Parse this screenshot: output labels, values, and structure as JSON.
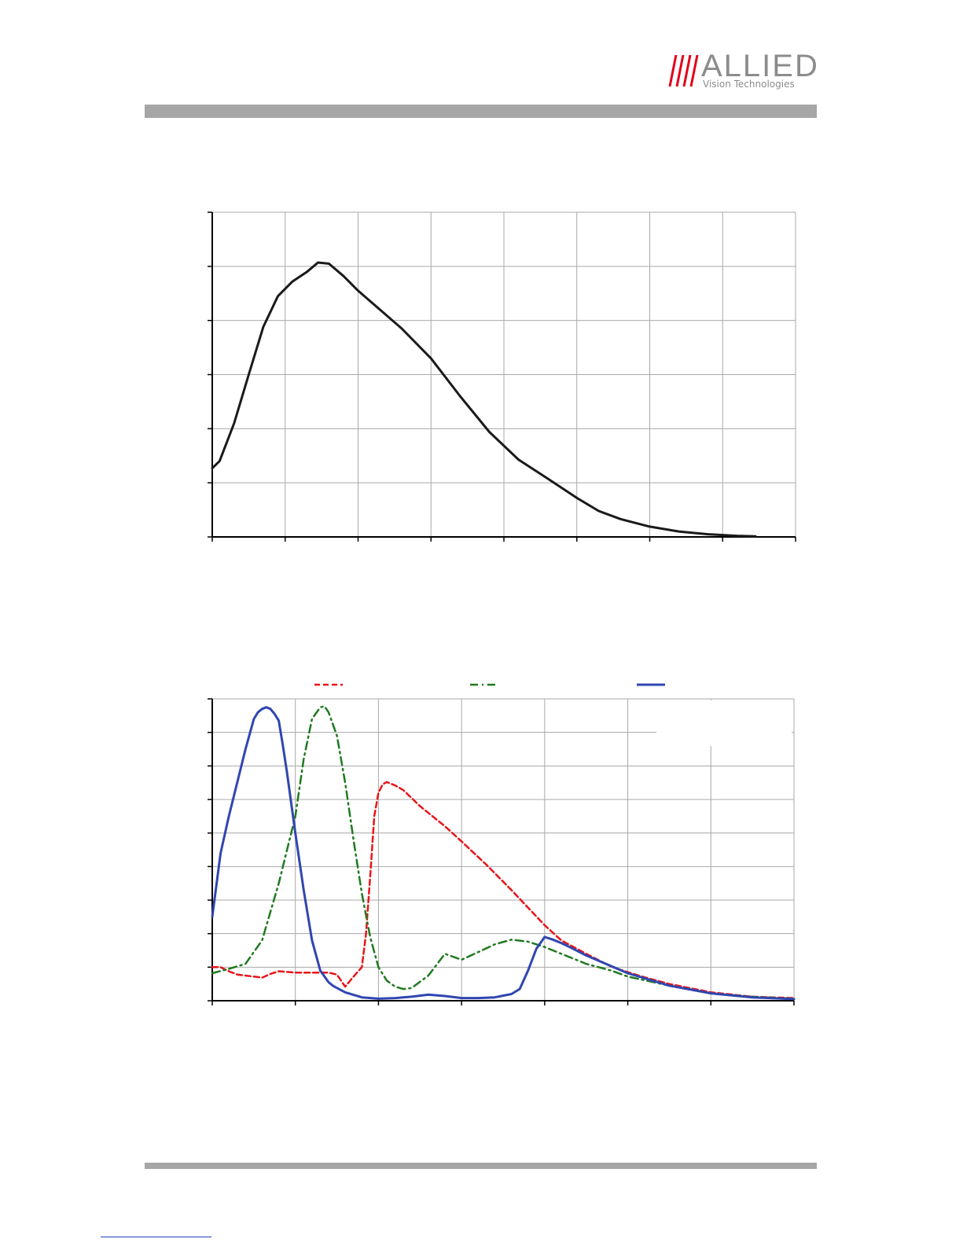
{
  "header": {
    "logo": {
      "word": "ALLIED",
      "sub": "Vision Technologies",
      "slash_color": "#e2001a",
      "word_color": "#8c8c8c"
    },
    "bar_color": "#a6a6a6"
  },
  "chart_data": [
    {
      "type": "line",
      "title": "",
      "xlabel": "",
      "ylabel": "",
      "xlim": [
        0,
        8
      ],
      "ylim": [
        0,
        6
      ],
      "grid": true,
      "series": [
        {
          "color": "#1a1a1a",
          "style": "solid",
          "x": [
            0,
            0.1,
            0.3,
            0.5,
            0.7,
            0.9,
            1.1,
            1.3,
            1.45,
            1.6,
            1.8,
            2.0,
            2.3,
            2.6,
            3.0,
            3.4,
            3.8,
            4.2,
            4.6,
            5.0,
            5.3,
            5.6,
            6.0,
            6.4,
            6.8,
            7.2,
            7.45
          ],
          "y": [
            1.27,
            1.4,
            2.1,
            3.0,
            3.88,
            4.45,
            4.72,
            4.9,
            5.07,
            5.05,
            4.82,
            4.55,
            4.2,
            3.85,
            3.3,
            2.6,
            1.94,
            1.43,
            1.08,
            0.72,
            0.48,
            0.33,
            0.19,
            0.1,
            0.05,
            0.02,
            0.01
          ]
        }
      ]
    },
    {
      "type": "line",
      "title": "",
      "xlabel": "",
      "ylabel": "",
      "xlim": [
        0,
        7
      ],
      "ylim": [
        0,
        9
      ],
      "grid": true,
      "legend": "top",
      "series": [
        {
          "color": "#e8141a",
          "style": "dashed",
          "x": [
            0,
            0.1,
            0.2,
            0.3,
            0.5,
            0.6,
            0.7,
            0.8,
            1.0,
            1.2,
            1.4,
            1.5,
            1.6,
            1.7,
            1.8,
            1.85,
            1.9,
            1.95,
            2.0,
            2.05,
            2.1,
            2.2,
            2.3,
            2.5,
            2.8,
            3.0,
            3.3,
            3.6,
            4.0,
            4.2,
            4.5,
            4.8,
            5.0,
            5.2,
            5.5,
            6.0,
            6.5,
            7.0
          ],
          "y": [
            1.0,
            1.0,
            0.88,
            0.78,
            0.72,
            0.69,
            0.8,
            0.88,
            0.84,
            0.84,
            0.84,
            0.78,
            0.42,
            0.72,
            1.0,
            2.0,
            3.7,
            5.5,
            6.2,
            6.45,
            6.52,
            6.42,
            6.28,
            5.8,
            5.2,
            4.75,
            4.05,
            3.3,
            2.25,
            1.8,
            1.4,
            1.02,
            0.85,
            0.7,
            0.5,
            0.25,
            0.12,
            0.08
          ]
        },
        {
          "color": "#1f7a1f",
          "style": "dashdot",
          "x": [
            0,
            0.2,
            0.4,
            0.6,
            0.8,
            1.0,
            1.1,
            1.2,
            1.3,
            1.35,
            1.4,
            1.5,
            1.6,
            1.7,
            1.8,
            1.9,
            2.0,
            2.1,
            2.2,
            2.3,
            2.4,
            2.6,
            2.8,
            3.0,
            3.2,
            3.4,
            3.6,
            3.8,
            4.0,
            4.2,
            4.5,
            4.8,
            5.0,
            5.5,
            6.0,
            6.5,
            7.0
          ],
          "y": [
            0.82,
            0.95,
            1.1,
            1.8,
            3.5,
            5.5,
            7.2,
            8.4,
            8.75,
            8.78,
            8.6,
            7.9,
            6.5,
            4.8,
            3.2,
            1.9,
            1.0,
            0.6,
            0.42,
            0.35,
            0.38,
            0.75,
            1.4,
            1.22,
            1.45,
            1.68,
            1.82,
            1.76,
            1.6,
            1.4,
            1.1,
            0.9,
            0.72,
            0.45,
            0.22,
            0.12,
            0.06
          ]
        },
        {
          "color": "#3046b0",
          "style": "solid",
          "x": [
            0,
            0.1,
            0.2,
            0.3,
            0.4,
            0.5,
            0.55,
            0.6,
            0.65,
            0.7,
            0.75,
            0.8,
            0.85,
            0.9,
            1.0,
            1.1,
            1.2,
            1.3,
            1.4,
            1.45,
            1.5,
            1.6,
            1.8,
            2.0,
            2.2,
            2.4,
            2.6,
            2.8,
            3.0,
            3.2,
            3.4,
            3.6,
            3.7,
            3.8,
            3.9,
            4.0,
            4.1,
            4.2,
            4.3,
            4.5,
            5.0,
            5.5,
            6.0,
            6.5,
            7.0
          ],
          "y": [
            2.5,
            4.4,
            5.5,
            6.5,
            7.5,
            8.4,
            8.6,
            8.7,
            8.75,
            8.7,
            8.55,
            8.35,
            7.6,
            6.8,
            5.0,
            3.3,
            1.8,
            0.9,
            0.55,
            0.45,
            0.38,
            0.25,
            0.1,
            0.06,
            0.08,
            0.12,
            0.18,
            0.14,
            0.08,
            0.08,
            0.1,
            0.2,
            0.35,
            0.9,
            1.55,
            1.9,
            1.82,
            1.72,
            1.6,
            1.35,
            0.82,
            0.45,
            0.22,
            0.1,
            0.05
          ]
        }
      ]
    }
  ]
}
